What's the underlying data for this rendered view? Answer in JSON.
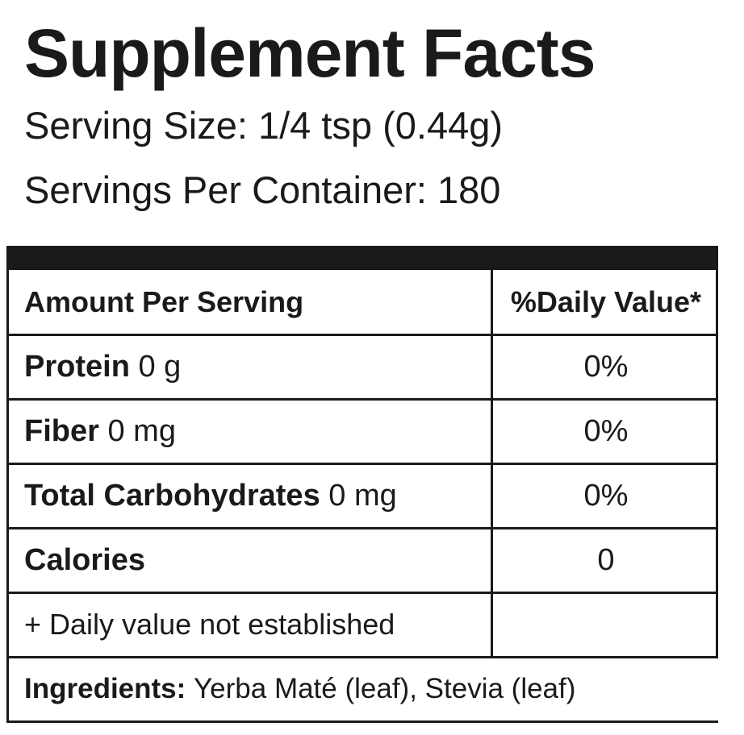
{
  "header": {
    "title": "Supplement Facts",
    "serving_size": "Serving Size: 1/4 tsp (0.44g)",
    "servings_per_container": "Servings Per Container: 180"
  },
  "table": {
    "headers": [
      "Amount Per Serving",
      "%Daily Value*"
    ],
    "rows": [
      {
        "name": "Protein",
        "amount": "0 g",
        "dv": "0%"
      },
      {
        "name": "Fiber",
        "amount": "0 mg",
        "dv": "0%"
      },
      {
        "name": "Total Carbohydrates",
        "amount": "0 mg",
        "dv": "0%"
      },
      {
        "name": "Calories",
        "dv": "0"
      }
    ],
    "footnote": "+ Daily value not established"
  },
  "ingredients": {
    "label": "Ingredients:",
    "text": "Yerba Maté (leaf), Stevia (leaf)"
  }
}
